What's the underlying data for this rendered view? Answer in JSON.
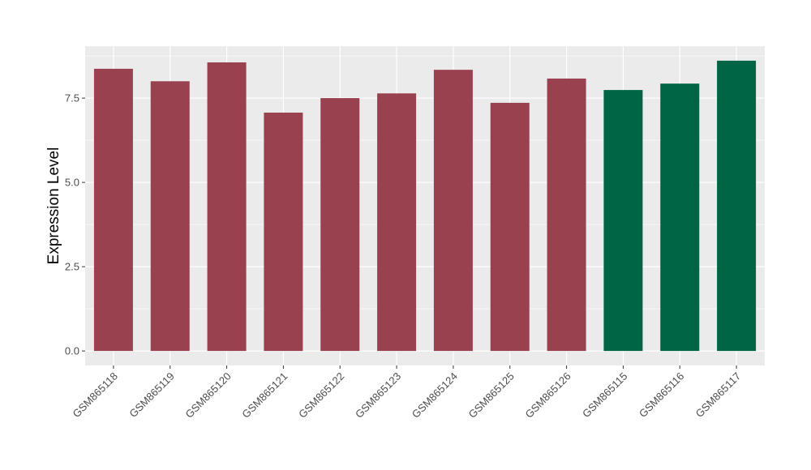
{
  "chart_data": {
    "type": "bar",
    "title": "",
    "xlabel": "",
    "ylabel": "Expression Level",
    "categories": [
      "GSM865118",
      "GSM865119",
      "GSM865120",
      "GSM865121",
      "GSM865122",
      "GSM865123",
      "GSM865124",
      "GSM865125",
      "GSM865126",
      "GSM865115",
      "GSM865116",
      "GSM865117"
    ],
    "values": [
      8.37,
      8.0,
      8.56,
      7.07,
      7.5,
      7.64,
      8.34,
      7.36,
      8.08,
      7.74,
      7.93,
      8.61
    ],
    "bar_colors": [
      "#9A4150",
      "#9A4150",
      "#9A4150",
      "#9A4150",
      "#9A4150",
      "#9A4150",
      "#9A4150",
      "#9A4150",
      "#9A4150",
      "#006544",
      "#006544",
      "#006544"
    ],
    "yticks": [
      0,
      2.5,
      5,
      7.5
    ],
    "ytick_labels": [
      "0.0",
      "2.5",
      "5.0",
      "7.5"
    ],
    "ylim": [
      -0.43,
      9.04
    ],
    "grid": true,
    "panel_background": "#EBEBEB",
    "legend": "none"
  }
}
